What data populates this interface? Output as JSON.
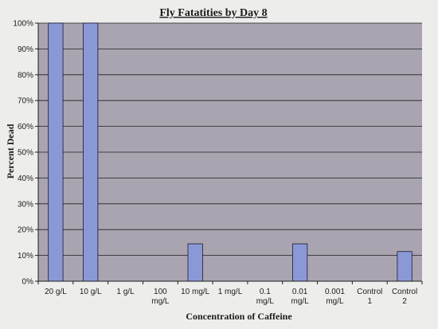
{
  "chart_data": {
    "type": "bar",
    "title": "Fly Fatatities by Day 8",
    "xlabel": "Concentration of Caffeine",
    "ylabel": "Percent Dead",
    "categories": [
      [
        "20 g/L"
      ],
      [
        "10 g/L"
      ],
      [
        "1 g/L"
      ],
      [
        "100",
        "mg/L"
      ],
      [
        "10 mg/L"
      ],
      [
        "1 mg/L"
      ],
      [
        "0.1",
        "mg/L"
      ],
      [
        "0.01",
        "mg/L"
      ],
      [
        "0.001",
        "mg/L"
      ],
      [
        "Control",
        "1"
      ],
      [
        "Control",
        "2"
      ]
    ],
    "values": [
      100,
      100,
      0,
      0,
      14.5,
      0,
      0,
      14.5,
      0,
      0,
      11.5
    ],
    "ylim": [
      0,
      100
    ],
    "yticks": [
      0,
      10,
      20,
      30,
      40,
      50,
      60,
      70,
      80,
      90,
      100
    ],
    "ytick_suffix": "%",
    "grid": true,
    "colors": {
      "bar": "#8b98d6",
      "bar_stroke": "#1a1a2e",
      "plot_bg": "#aaa4b1",
      "grid": "#1e1e1e"
    }
  }
}
